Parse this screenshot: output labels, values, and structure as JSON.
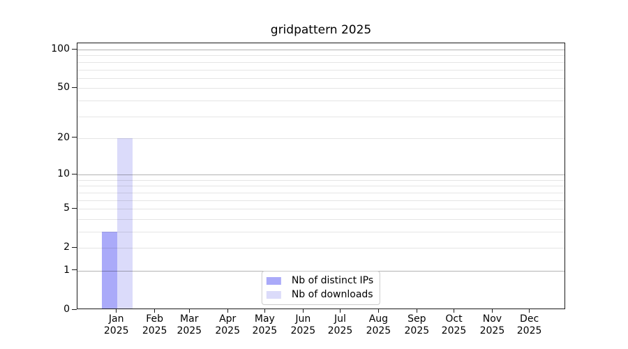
{
  "chart_data": {
    "type": "bar",
    "title": "gridpattern 2025",
    "categories": [
      "Jan 2025",
      "Feb 2025",
      "Mar 2025",
      "Apr 2025",
      "May 2025",
      "Jun 2025",
      "Jul 2025",
      "Aug 2025",
      "Sep 2025",
      "Oct 2025",
      "Nov 2025",
      "Dec 2025"
    ],
    "series": [
      {
        "name": "Nb of distinct IPs",
        "color": "#aaaaf9",
        "values": [
          3,
          0,
          0,
          0,
          0,
          0,
          0,
          0,
          0,
          0,
          0,
          0
        ]
      },
      {
        "name": "Nb of downloads",
        "color": "#dbdbfa",
        "values": [
          20,
          0,
          0,
          0,
          0,
          0,
          0,
          0,
          0,
          0,
          0,
          0
        ]
      }
    ],
    "yscale": "log1p",
    "ylim": [
      0,
      112
    ],
    "y_ticks": [
      0,
      1,
      2,
      5,
      10,
      20,
      50,
      100
    ],
    "y_major_gridlines": [
      1,
      10,
      100
    ],
    "y_minor_gridlines": [
      2,
      3,
      4,
      5,
      6,
      7,
      8,
      9,
      20,
      30,
      40,
      50,
      60,
      70,
      80,
      90
    ],
    "x_day_offsets": [
      0,
      31,
      59,
      90,
      120,
      151,
      181,
      212,
      243,
      273,
      304,
      334
    ],
    "x_domain_days": [
      -32,
      363
    ],
    "grid": true,
    "legend_position": "lower center"
  },
  "colors": {
    "background": "#ffffff",
    "spine": "#1a1a1a",
    "tick_label": "#000000",
    "grid_major": "rgba(0,0,0,0.30)",
    "grid_minor": "rgba(0,0,0,0.10)",
    "legend_border": "#cbcbcb"
  }
}
